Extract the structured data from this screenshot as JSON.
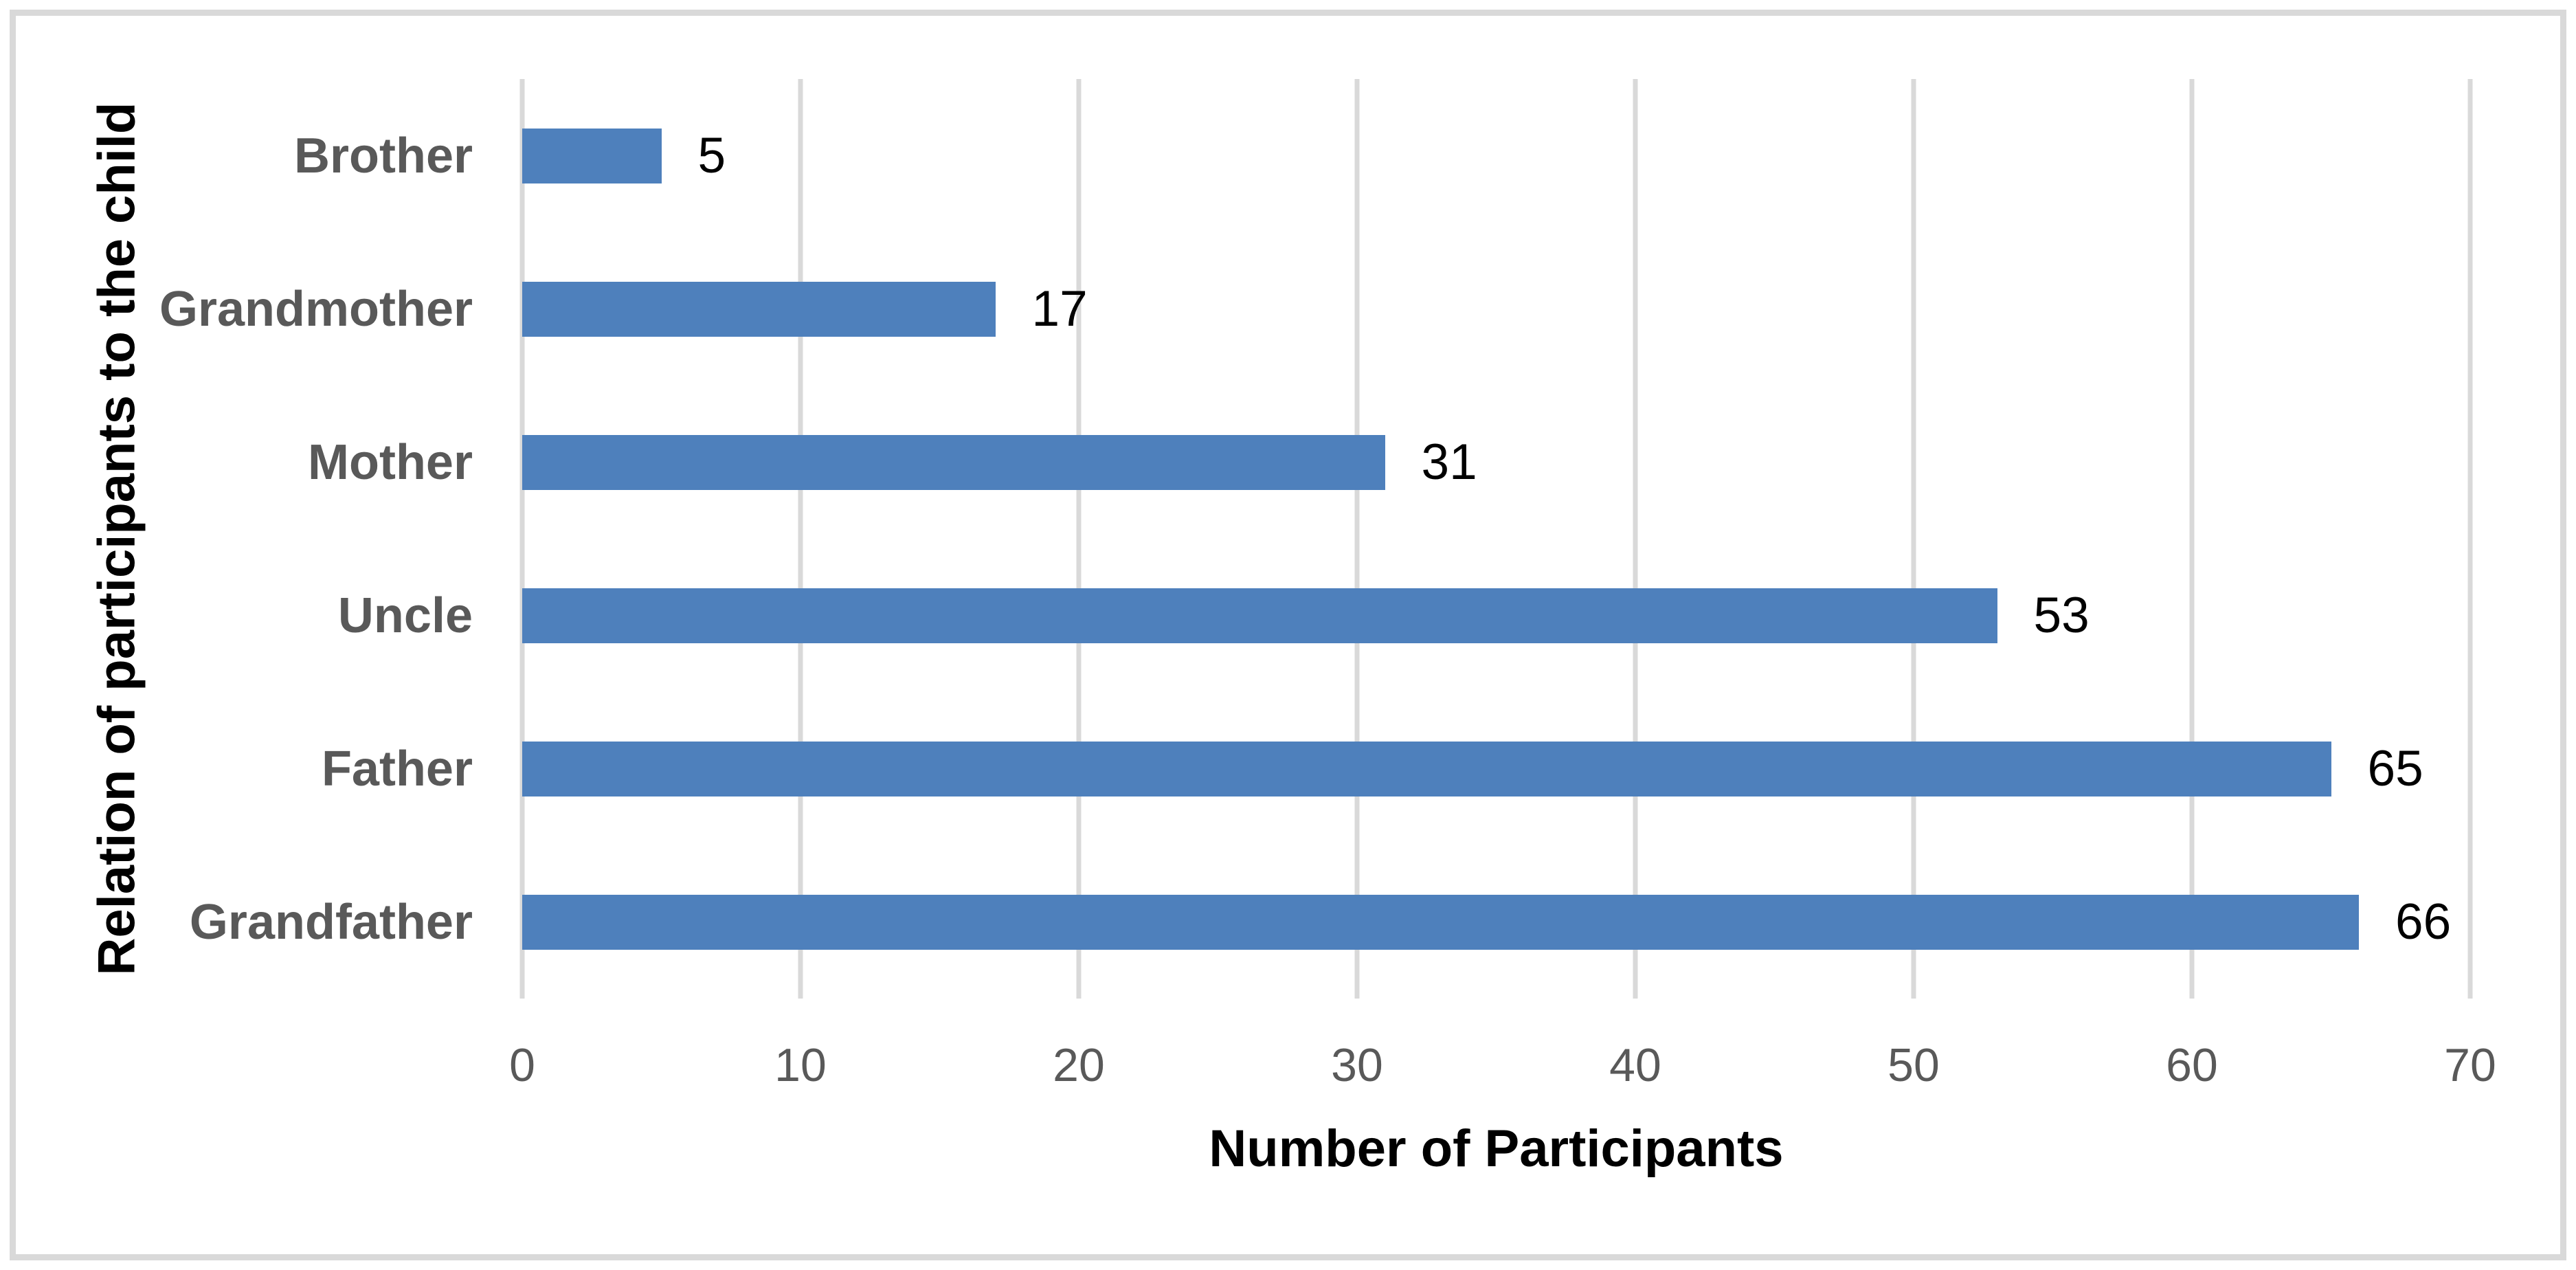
{
  "chart_data": {
    "type": "bar",
    "orientation": "horizontal",
    "categories": [
      "Brother",
      "Grandmother",
      "Mother",
      "Uncle",
      "Father",
      "Grandfather"
    ],
    "values": [
      5,
      17,
      31,
      53,
      65,
      66
    ],
    "title": "",
    "xlabel": "Number of Participants",
    "ylabel": "Relation of participants to the child",
    "xlim": [
      0,
      70
    ],
    "x_ticks": [
      0,
      10,
      20,
      30,
      40,
      50,
      60,
      70
    ],
    "grid": "vertical-only",
    "data_labels": true,
    "legend": "none",
    "colors": {
      "bar": "#4E80BC",
      "gridline": "#D9D9D9",
      "chart_border": "#D9D9D9",
      "background": "#FFFFFF",
      "category_label": "#595959",
      "tick_label": "#595959",
      "value_label": "#000000",
      "axis_title": "#000000"
    }
  }
}
